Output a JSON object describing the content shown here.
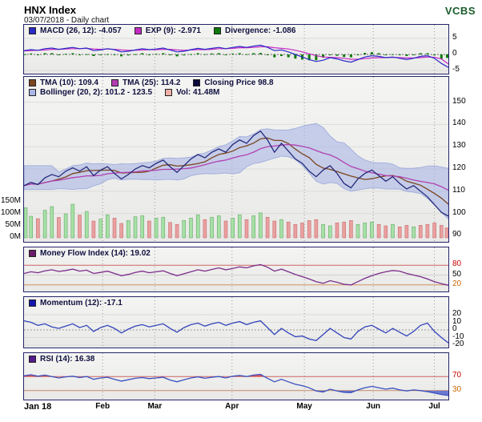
{
  "header": {
    "title": "HNX Index",
    "subtitle": "03/07/2018 - Daily chart",
    "brand": "VCBS"
  },
  "colors": {
    "panel_border": "#24246a",
    "brand_green": "#1a5c2a",
    "grid": "#dcdcda",
    "background": "#ffffff"
  },
  "chart_data": {
    "type": "line",
    "title": "HNX Index",
    "subtitle": "03/07/2018 - Daily chart",
    "x": {
      "n": 62,
      "months": [
        {
          "label": "Jan 18",
          "i": 0
        },
        {
          "label": "Feb",
          "i": 11.3
        },
        {
          "label": "Mar",
          "i": 18.8
        },
        {
          "label": "Apr",
          "i": 29.9
        },
        {
          "label": "May",
          "i": 40.3
        },
        {
          "label": "Jun",
          "i": 50.2
        },
        {
          "label": "Jul",
          "i": 59
        }
      ]
    },
    "panels": [
      {
        "id": "macd",
        "name": "MACD indicator",
        "ylim": [
          -6,
          6
        ],
        "legend": [
          {
            "label": "MACD (26, 12): -4.057",
            "color": "#2a2ac8"
          },
          {
            "label": "EXP (9): -2.971",
            "color": "#c52ac5"
          },
          {
            "label": "Divergence: -1.086",
            "color": "#0b7a0b"
          }
        ],
        "ticks": [
          {
            "v": 5,
            "label": "5",
            "color": "#000000",
            "grid": "#dcdcda"
          },
          {
            "v": 0,
            "label": "0",
            "color": "#000000",
            "grid": "#666666",
            "dash": true
          },
          {
            "v": -5,
            "label": "-5",
            "color": "#000000",
            "grid": "#dcdcda"
          }
        ],
        "series": [
          {
            "name": "macd",
            "color": "#2a2ac8",
            "values": [
              1.2,
              1.5,
              1.3,
              1.8,
              2.0,
              1.6,
              1.9,
              2.2,
              1.8,
              2.0,
              1.2,
              1.4,
              1.8,
              1.5,
              0.8,
              1.0,
              1.4,
              1.8,
              1.5,
              1.7,
              2.0,
              1.4,
              0.8,
              1.0,
              1.5,
              1.9,
              1.6,
              1.9,
              2.2,
              1.8,
              2.2,
              2.5,
              2.2,
              2.6,
              2.9,
              2.2,
              1.2,
              1.4,
              0.8,
              0.0,
              -0.8,
              -1.6,
              -2.2,
              -1.8,
              -1.0,
              -1.4,
              -2.0,
              -2.4,
              -1.6,
              -0.8,
              -0.4,
              -0.6,
              -1.0,
              -0.8,
              -1.2,
              -1.6,
              -1.2,
              -0.6,
              -0.4,
              -1.2,
              -2.8,
              -4.057
            ]
          },
          {
            "name": "exp9",
            "color": "#c52ac5",
            "values": [
              1.1,
              1.2,
              1.3,
              1.4,
              1.6,
              1.6,
              1.7,
              1.8,
              1.8,
              1.9,
              1.7,
              1.6,
              1.7,
              1.6,
              1.4,
              1.3,
              1.3,
              1.4,
              1.5,
              1.5,
              1.6,
              1.6,
              1.4,
              1.3,
              1.4,
              1.5,
              1.5,
              1.6,
              1.8,
              1.8,
              1.9,
              2.1,
              2.1,
              2.2,
              2.4,
              2.4,
              2.1,
              1.9,
              1.7,
              1.3,
              0.8,
              0.2,
              -0.4,
              -0.8,
              -0.9,
              -1.0,
              -1.2,
              -1.5,
              -1.5,
              -1.3,
              -1.1,
              -1.0,
              -1.0,
              -0.9,
              -1.0,
              -1.1,
              -1.1,
              -1.0,
              -0.8,
              -0.9,
              -1.4,
              -2.971
            ]
          }
        ],
        "histogram": {
          "name": "divergence",
          "color": "#0b7a0b",
          "derive": "macd - exp9",
          "last": -1.086
        }
      },
      {
        "id": "price",
        "name": "HNX Index price with TMA and Bollinger",
        "ylim": [
          88,
          152
        ],
        "legend": [
          {
            "label": "TMA (10): 109.4",
            "color": "#7a4520"
          },
          {
            "label": "TMA (25): 114.2",
            "color": "#b13fb1"
          },
          {
            "label": "Closing Price 98.8",
            "color": "#0a0a3c"
          }
        ],
        "legend2": [
          {
            "label": "Bollinger (20, 2): 101.2 - 123.5",
            "color": "#aab6e6"
          },
          {
            "label": "Vol: 41.48M",
            "color": "#f0b0a8"
          }
        ],
        "ticks": [
          {
            "v": 150,
            "label": "150",
            "color": "#000000",
            "grid": "#dcdcda"
          },
          {
            "v": 140,
            "label": "140",
            "color": "#000000",
            "grid": "#dcdcda"
          },
          {
            "v": 130,
            "label": "130",
            "color": "#000000",
            "grid": "#dcdcda"
          },
          {
            "v": 120,
            "label": "120",
            "color": "#000000",
            "grid": "#dcdcda"
          },
          {
            "v": 110,
            "label": "110",
            "color": "#000000",
            "grid": "#dcdcda"
          },
          {
            "v": 100,
            "label": "100",
            "color": "#000000",
            "grid": "#dcdcda"
          },
          {
            "v": 90,
            "label": "90",
            "color": "#000000",
            "grid": "#dcdcda"
          }
        ],
        "series": [
          {
            "name": "close",
            "color": "#252a7a",
            "last": 98.8,
            "values": [
              112.5,
              114,
              113,
              116,
              117.5,
              116.5,
              119,
              120.5,
              119,
              121,
              117,
              119.5,
              121,
              118,
              115.5,
              117.5,
              120,
              121.5,
              120.5,
              122.5,
              124,
              121,
              118.5,
              121.5,
              124.5,
              126.5,
              125,
              127.5,
              129,
              127.5,
              131,
              133,
              131.5,
              135,
              137,
              133,
              127.5,
              131.5,
              128,
              124.5,
              122.5,
              119,
              116.5,
              119.5,
              121.5,
              118,
              113.5,
              111.5,
              115.5,
              118,
              119.5,
              117,
              114.5,
              116.5,
              113.5,
              111,
              112.5,
              110,
              107.5,
              104,
              100.5,
              98.8
            ]
          }
        ],
        "derived": [
          {
            "name": "tma10",
            "window": 5,
            "color": "#7a4520",
            "last": 109.4
          },
          {
            "name": "tma25",
            "window": 12,
            "color": "#b13fb1",
            "last": 114.2
          }
        ],
        "bollinger": {
          "window": 10,
          "mult": 2,
          "fill": "#aab6e6",
          "edge": "#8f9fd8",
          "display_range": "101.2 - 123.5"
        },
        "volume": {
          "last_label": "41.48M",
          "up": "#a6e0a6",
          "upEdge": "#56a056",
          "down": "#eaa0a0",
          "downEdge": "#c06060",
          "ticks": [
            {
              "v": 150,
              "label": "150M"
            },
            {
              "v": 100,
              "label": "100M"
            },
            {
              "v": 50,
              "label": "50M"
            },
            {
              "v": 0,
              "label": "0M"
            }
          ],
          "values": [
            125,
            90,
            80,
            115,
            130,
            85,
            100,
            140,
            95,
            110,
            70,
            78,
            96,
            82,
            60,
            72,
            88,
            92,
            70,
            82,
            86,
            64,
            56,
            72,
            82,
            96,
            76,
            86,
            92,
            70,
            82,
            96,
            76,
            92,
            104,
            86,
            70,
            76,
            66,
            56,
            62,
            72,
            76,
            56,
            50,
            62,
            66,
            72,
            56,
            62,
            66,
            56,
            50,
            56,
            46,
            52,
            46,
            52,
            56,
            62,
            52,
            41.48
          ]
        }
      },
      {
        "id": "mfi",
        "name": "Money Flow Index",
        "ylim": [
          0,
          100
        ],
        "legend": [
          {
            "label": "Money Flow Index (14): 19.02",
            "color": "#6a1b6a"
          }
        ],
        "ticks": [
          {
            "v": 80,
            "label": "80",
            "color": "#cc0000",
            "grid": "#cc6666"
          },
          {
            "v": 50,
            "label": "50",
            "color": "#000000",
            "grid": "#cfcfcd"
          },
          {
            "v": 20,
            "label": "20",
            "color": "#cc6600",
            "grid": "#d09060"
          }
        ],
        "series": [
          {
            "name": "mfi",
            "color": "#7b2d8b",
            "last": 19.02,
            "values": [
              55,
              60,
              57,
              63,
              66,
              61,
              64,
              68,
              62,
              65,
              55,
              58,
              62,
              55,
              48,
              52,
              58,
              62,
              57,
              60,
              63,
              55,
              48,
              54,
              60,
              66,
              62,
              67,
              72,
              66,
              70,
              75,
              72,
              78,
              82,
              74,
              62,
              68,
              60,
              52,
              45,
              38,
              30,
              25,
              33,
              28,
              22,
              20,
              30,
              40,
              48,
              55,
              60,
              64,
              62,
              55,
              50,
              45,
              38,
              30,
              24,
              19.02
            ]
          }
        ]
      },
      {
        "id": "momentum",
        "name": "Momentum indicator",
        "ylim": [
          -26,
          26
        ],
        "legend": [
          {
            "label": "Momentum (12): -17.1",
            "color": "#1515b0"
          }
        ],
        "ticks": [
          {
            "v": 20,
            "label": "20",
            "color": "#000000",
            "grid": "#dcdcda"
          },
          {
            "v": 10,
            "label": "10",
            "color": "#000000",
            "grid": "#dcdcda"
          },
          {
            "v": 0,
            "label": "0",
            "color": "#000000",
            "grid": "#999999",
            "dash": true
          },
          {
            "v": -10,
            "label": "-10",
            "color": "#000000",
            "grid": "#dcdcda"
          },
          {
            "v": -20,
            "label": "-20",
            "color": "#000000",
            "grid": "#dcdcda"
          }
        ],
        "series": [
          {
            "name": "momentum",
            "color": "#3344bb",
            "last": -17.1,
            "values": [
              12,
              10,
              6,
              8,
              4,
              2,
              5,
              8,
              3,
              6,
              -2,
              3,
              6,
              2,
              -4,
              1,
              5,
              7,
              4,
              6,
              8,
              2,
              -3,
              3,
              7,
              9,
              5,
              8,
              10,
              6,
              9,
              11,
              7,
              10,
              12,
              3,
              -6,
              2,
              -4,
              -9,
              -8,
              -12,
              -14,
              -6,
              2,
              -4,
              -10,
              -12,
              -2,
              4,
              6,
              1,
              -4,
              2,
              -3,
              -8,
              -2,
              6,
              9,
              -2,
              -10,
              -17.1
            ]
          }
        ]
      },
      {
        "id": "rsi",
        "name": "Relative Strength Index",
        "ylim": [
          0,
          100
        ],
        "legend": [
          {
            "label": "RSI (14): 16.38",
            "color": "#551a8b"
          }
        ],
        "ticks": [
          {
            "v": 70,
            "label": "70",
            "color": "#cc0000",
            "grid": "#cc6666"
          },
          {
            "v": 30,
            "label": "30",
            "color": "#cc6600",
            "grid": "#d09060"
          }
        ],
        "fills": {
          "over": {
            "level": 70,
            "color": "#e04040"
          },
          "under": {
            "level": 30,
            "color": "#5566cc"
          }
        },
        "series": [
          {
            "name": "rsi",
            "color": "#3950c0",
            "last": 16.38,
            "values": [
              72,
              75,
              71,
              74,
              70,
              66,
              69,
              71,
              67,
              70,
              62,
              66,
              68,
              62,
              57,
              61,
              65,
              67,
              64,
              66,
              68,
              60,
              55,
              61,
              66,
              69,
              65,
              68,
              70,
              66,
              71,
              73,
              70,
              74,
              76,
              65,
              55,
              62,
              55,
              48,
              44,
              38,
              29,
              26,
              34,
              29,
              25,
              24,
              32,
              38,
              42,
              38,
              34,
              37,
              32,
              29,
              32,
              30,
              27,
              23,
              19,
              16.38
            ]
          }
        ]
      }
    ]
  }
}
